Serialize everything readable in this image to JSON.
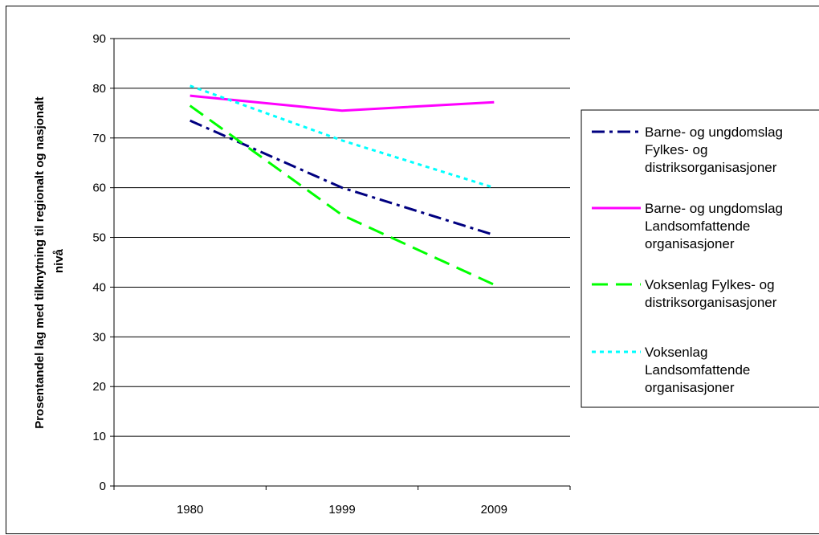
{
  "chart_data": {
    "type": "line",
    "title": "",
    "xlabel": "",
    "ylabel_lines": [
      "Prosentandel lag med tilknytning til regionalt og nasjonalt",
      "nivå"
    ],
    "categories": [
      "1980",
      "1999",
      "2009"
    ],
    "ylim": [
      0,
      90
    ],
    "yticks": [
      "0",
      "10",
      "20",
      "30",
      "40",
      "50",
      "60",
      "70",
      "80",
      "90"
    ],
    "grid": true,
    "legend_position": "right",
    "series": [
      {
        "name": "Barne- og ungdomslag Fylkes- og distriksorganisasjoner",
        "legend_lines": [
          "Barne- og ungdomslag",
          "Fylkes- og",
          "distriksorganisasjoner"
        ],
        "values": [
          73.5,
          60,
          50.5
        ],
        "color": "#000080",
        "style": "dash-dot"
      },
      {
        "name": "Barne- og ungdomslag Landsomfattende organisasjoner",
        "legend_lines": [
          "Barne- og ungdomslag",
          "Landsomfattende",
          "organisasjoner"
        ],
        "values": [
          78.5,
          75.5,
          77.2
        ],
        "color": "#ff00ff",
        "style": "solid"
      },
      {
        "name": "Voksenlag Fylkes- og distriksorganisasjoner",
        "legend_lines": [
          "Voksenlag Fylkes- og",
          "distriksorganisasjoner"
        ],
        "values": [
          76.5,
          54.5,
          40.5
        ],
        "color": "#00ff00",
        "style": "dash"
      },
      {
        "name": "Voksenlag Landsomfattende organisasjoner",
        "legend_lines": [
          "Voksenlag",
          "Landsomfattende",
          "organisasjoner"
        ],
        "values": [
          80.5,
          69.5,
          60
        ],
        "color": "#00ffff",
        "style": "dot"
      }
    ]
  }
}
